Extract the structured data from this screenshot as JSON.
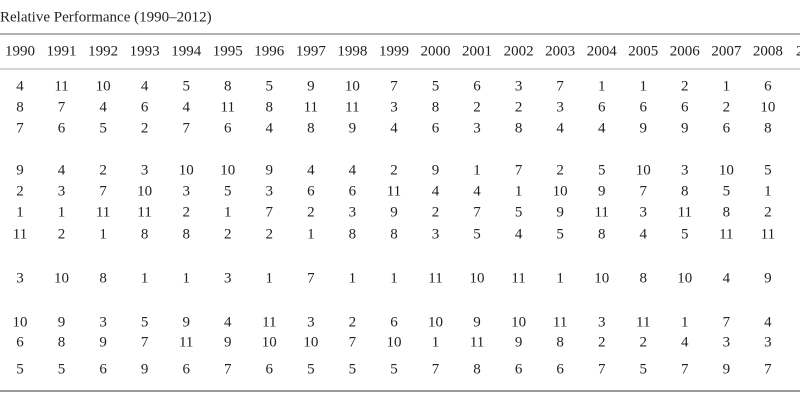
{
  "title": "Relative Performance (1990–2012)",
  "table": {
    "header": [
      "1990",
      "1991",
      "1992",
      "1993",
      "1994",
      "1995",
      "1996",
      "1997",
      "1998",
      "1999",
      "2000",
      "2001",
      "2002",
      "2003",
      "2004",
      "2005",
      "2006",
      "2007",
      "2008",
      "2"
    ],
    "groups": [
      [
        [
          "4",
          "11",
          "10",
          "4",
          "5",
          "8",
          "5",
          "9",
          "10",
          "7",
          "5",
          "6",
          "3",
          "7",
          "1",
          "1",
          "2",
          "1",
          "6"
        ],
        [
          "8",
          "7",
          "4",
          "6",
          "4",
          "11",
          "8",
          "11",
          "11",
          "3",
          "8",
          "2",
          "2",
          "3",
          "6",
          "6",
          "6",
          "2",
          "10"
        ],
        [
          "7",
          "6",
          "5",
          "2",
          "7",
          "6",
          "4",
          "8",
          "9",
          "4",
          "6",
          "3",
          "8",
          "4",
          "4",
          "9",
          "9",
          "6",
          "8"
        ]
      ],
      [
        [
          "9",
          "4",
          "2",
          "3",
          "10",
          "10",
          "9",
          "4",
          "4",
          "2",
          "9",
          "1",
          "7",
          "2",
          "5",
          "10",
          "3",
          "10",
          "5"
        ],
        [
          "2",
          "3",
          "7",
          "10",
          "3",
          "5",
          "3",
          "6",
          "6",
          "11",
          "4",
          "4",
          "1",
          "10",
          "9",
          "7",
          "8",
          "5",
          "1"
        ],
        [
          "1",
          "1",
          "11",
          "11",
          "2",
          "1",
          "7",
          "2",
          "3",
          "9",
          "2",
          "7",
          "5",
          "9",
          "11",
          "3",
          "11",
          "8",
          "2"
        ],
        [
          "11",
          "2",
          "1",
          "8",
          "8",
          "2",
          "2",
          "1",
          "8",
          "8",
          "3",
          "5",
          "4",
          "5",
          "8",
          "4",
          "5",
          "11",
          "11"
        ]
      ],
      [
        [
          "3",
          "10",
          "8",
          "1",
          "1",
          "3",
          "1",
          "7",
          "1",
          "1",
          "11",
          "10",
          "11",
          "1",
          "10",
          "8",
          "10",
          "4",
          "9"
        ]
      ],
      [
        [
          "10",
          "9",
          "3",
          "5",
          "9",
          "4",
          "11",
          "3",
          "2",
          "6",
          "10",
          "9",
          "10",
          "11",
          "3",
          "11",
          "1",
          "7",
          "4"
        ],
        [
          "6",
          "8",
          "9",
          "7",
          "11",
          "9",
          "10",
          "10",
          "7",
          "10",
          "1",
          "11",
          "9",
          "8",
          "2",
          "2",
          "4",
          "3",
          "3"
        ]
      ],
      [
        [
          "5",
          "5",
          "6",
          "9",
          "6",
          "7",
          "6",
          "5",
          "5",
          "5",
          "7",
          "8",
          "6",
          "6",
          "7",
          "5",
          "7",
          "9",
          "7"
        ]
      ]
    ]
  }
}
